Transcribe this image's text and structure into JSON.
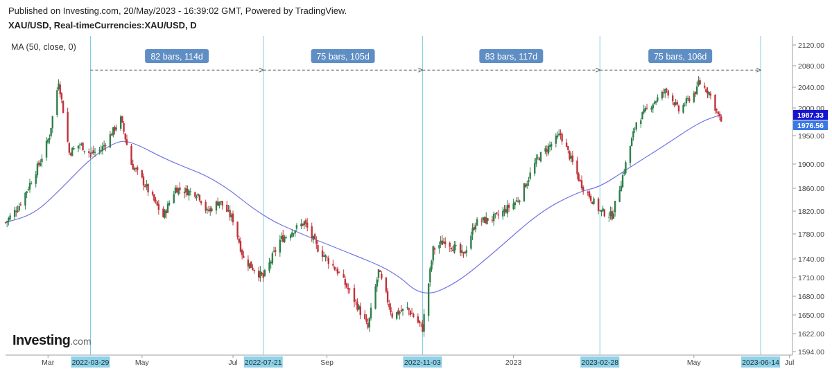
{
  "header": {
    "published": "Published on Investing.com, 20/May/2023 - 16:39:02 GMT, Powered by TradingView.",
    "symbol": "XAU/USD, Real-timeCurrencies:XAU/USD, D"
  },
  "indicator": {
    "label": "MA (50, close, 0)",
    "color": "#6f74e8"
  },
  "logo": {
    "brand": "Investing",
    "suffix": ".com"
  },
  "colors": {
    "up": "#2d7f4b",
    "down": "#c0333a",
    "guide": "#7ccbe0",
    "annotation_bg": "#5f8ec4",
    "date_tag_bg": "#8fd1e6",
    "price_tag_dark": "#1515cf",
    "price_tag_light": "#3a78e6"
  },
  "chart_data": {
    "type": "candlestick",
    "title": "XAU/USD, Real-timeCurrencies:XAU/USD, D",
    "x_range": [
      "2022-02-01",
      "2023-07-05"
    ],
    "ylim": [
      1594,
      2130
    ],
    "y_ticks": [
      1594.0,
      1622.0,
      1650.0,
      1680.0,
      1710.0,
      1740.0,
      1780.0,
      1820.0,
      1860.0,
      1900.0,
      1950.0,
      2000.0,
      2040.0,
      2080.0,
      2120.0
    ],
    "y_tick_labels": [
      "1594.00",
      "1622.00",
      "1650.00",
      "1680.00",
      "1710.00",
      "1740.00",
      "1780.00",
      "1820.00",
      "1860.00",
      "1900.00",
      "1950.00",
      "2000.00",
      "2040.00",
      "2080.00",
      "2120.00"
    ],
    "x_ticks": [
      {
        "label": "Mar",
        "date": "2022-03-01"
      },
      {
        "label": "May",
        "date": "2022-05-02"
      },
      {
        "label": "Jul",
        "date": "2022-07-01"
      },
      {
        "label": "Sep",
        "date": "2022-09-01"
      },
      {
        "label": "2023",
        "date": "2023-01-02"
      },
      {
        "label": "May",
        "date": "2023-05-01"
      },
      {
        "label": "Jul",
        "date": "2023-07-03"
      }
    ],
    "vertical_markers": [
      {
        "date": "2022-03-29",
        "label": "2022-03-29"
      },
      {
        "date": "2022-07-21",
        "label": "2022-07-21"
      },
      {
        "date": "2022-11-03",
        "label": "2022-11-03"
      },
      {
        "date": "2023-02-28",
        "label": "2023-02-28"
      },
      {
        "date": "2023-06-14",
        "label": "2023-06-14"
      }
    ],
    "range_annotations": [
      {
        "from": "2022-03-29",
        "to": "2022-07-21",
        "label": "82 bars, 114d",
        "price": 2072
      },
      {
        "from": "2022-07-21",
        "to": "2022-11-03",
        "label": "75 bars, 105d",
        "price": 2072
      },
      {
        "from": "2022-11-03",
        "to": "2023-02-28",
        "label": "83 bars, 117d",
        "price": 2072
      },
      {
        "from": "2023-02-28",
        "to": "2023-06-14",
        "label": "75 bars, 106d",
        "price": 2072
      }
    ],
    "price_labels": [
      {
        "value": 1987.33,
        "label": "1987.33",
        "style": "dark"
      },
      {
        "value": 1976.56,
        "label": "1976.56",
        "style": "light"
      }
    ],
    "close_anchors": [
      [
        "2022-02-01",
        1800
      ],
      [
        "2022-02-10",
        1830
      ],
      [
        "2022-02-24",
        1905
      ],
      [
        "2022-03-02",
        1950
      ],
      [
        "2022-03-08",
        2052
      ],
      [
        "2022-03-15",
        1920
      ],
      [
        "2022-03-22",
        1935
      ],
      [
        "2022-03-29",
        1918
      ],
      [
        "2022-04-05",
        1925
      ],
      [
        "2022-04-18",
        1980
      ],
      [
        "2022-04-25",
        1900
      ],
      [
        "2022-05-03",
        1870
      ],
      [
        "2022-05-16",
        1810
      ],
      [
        "2022-05-24",
        1860
      ],
      [
        "2022-06-08",
        1850
      ],
      [
        "2022-06-14",
        1818
      ],
      [
        "2022-06-22",
        1838
      ],
      [
        "2022-07-01",
        1805
      ],
      [
        "2022-07-08",
        1740
      ],
      [
        "2022-07-21",
        1710
      ],
      [
        "2022-08-01",
        1770
      ],
      [
        "2022-08-17",
        1800
      ],
      [
        "2022-08-25",
        1760
      ],
      [
        "2022-09-08",
        1720
      ],
      [
        "2022-09-20",
        1670
      ],
      [
        "2022-09-28",
        1630
      ],
      [
        "2022-10-05",
        1720
      ],
      [
        "2022-10-14",
        1650
      ],
      [
        "2022-10-24",
        1660
      ],
      [
        "2022-11-03",
        1630
      ],
      [
        "2022-11-10",
        1755
      ],
      [
        "2022-11-18",
        1770
      ],
      [
        "2022-11-30",
        1745
      ],
      [
        "2022-12-08",
        1800
      ],
      [
        "2022-12-22",
        1810
      ],
      [
        "2023-01-05",
        1840
      ],
      [
        "2023-01-18",
        1910
      ],
      [
        "2023-02-02",
        1952
      ],
      [
        "2023-02-15",
        1870
      ],
      [
        "2023-02-28",
        1820
      ],
      [
        "2023-03-08",
        1812
      ],
      [
        "2023-03-17",
        1900
      ],
      [
        "2023-03-24",
        1975
      ],
      [
        "2023-04-04",
        2010
      ],
      [
        "2023-04-13",
        2035
      ],
      [
        "2023-04-21",
        1995
      ],
      [
        "2023-05-03",
        2035
      ],
      [
        "2023-05-04",
        2050
      ],
      [
        "2023-05-11",
        2030
      ],
      [
        "2023-05-18",
        1980
      ],
      [
        "2023-05-19",
        1976.56
      ]
    ],
    "ma": {
      "name": "MA (50, close, 0)",
      "points": [
        [
          "2022-02-01",
          1800
        ],
        [
          "2022-02-20",
          1815
        ],
        [
          "2022-03-10",
          1860
        ],
        [
          "2022-03-29",
          1910
        ],
        [
          "2022-04-15",
          1940
        ],
        [
          "2022-04-25",
          1940
        ],
        [
          "2022-05-20",
          1905
        ],
        [
          "2022-06-20",
          1875
        ],
        [
          "2022-07-21",
          1810
        ],
        [
          "2022-08-15",
          1780
        ],
        [
          "2022-09-15",
          1750
        ],
        [
          "2022-10-15",
          1720
        ],
        [
          "2022-11-03",
          1678
        ],
        [
          "2022-11-25",
          1700
        ],
        [
          "2022-12-20",
          1750
        ],
        [
          "2023-01-20",
          1820
        ],
        [
          "2023-02-15",
          1855
        ],
        [
          "2023-02-28",
          1862
        ],
        [
          "2023-03-20",
          1895
        ],
        [
          "2023-04-10",
          1930
        ],
        [
          "2023-05-05",
          1975
        ],
        [
          "2023-05-19",
          1988
        ]
      ]
    }
  }
}
